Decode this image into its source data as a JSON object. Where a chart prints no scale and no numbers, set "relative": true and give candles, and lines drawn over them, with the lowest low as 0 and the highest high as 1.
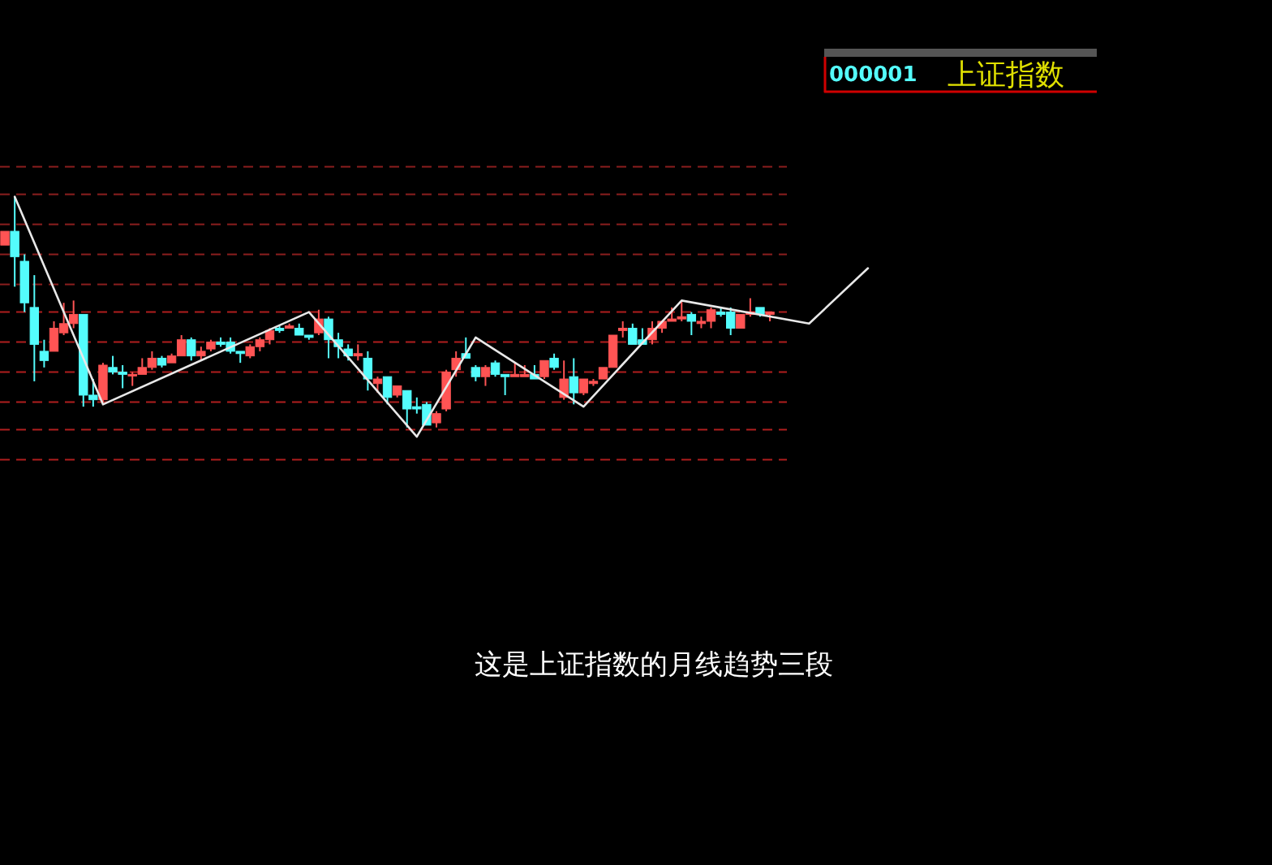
{
  "chart_data": {
    "type": "candlestick",
    "title": "000001",
    "subtitle": "上证指数",
    "annotations": [
      "这是上证指数的月线趋势三段"
    ],
    "relative": true,
    "categories": [
      null,
      null,
      null,
      null,
      null,
      null,
      null,
      null,
      null,
      null,
      null,
      null,
      null,
      null,
      null,
      null,
      null,
      null,
      null,
      null,
      null,
      null,
      null,
      null,
      null,
      null,
      null,
      null,
      null,
      null,
      null,
      null,
      null,
      null,
      null,
      null,
      null,
      null,
      null,
      null,
      null,
      null,
      null,
      null,
      null,
      null,
      null,
      null,
      null,
      null,
      null,
      null,
      null,
      null,
      null,
      null,
      null,
      null,
      null,
      null,
      null,
      null,
      null,
      null,
      null,
      null,
      null,
      null,
      null,
      null,
      null,
      null,
      null,
      null,
      null,
      null,
      null,
      null,
      null,
      null,
      null,
      null,
      null,
      null,
      null,
      null,
      null,
      null,
      null
    ],
    "ohlc": [
      [
        0.79,
        0.85,
        0.79,
        0.85
      ],
      [
        0.85,
        1.0,
        0.61,
        0.74
      ],
      [
        0.72,
        0.75,
        0.5,
        0.54
      ],
      [
        0.52,
        0.66,
        0.2,
        0.36
      ],
      [
        0.33,
        0.38,
        0.26,
        0.29
      ],
      [
        0.33,
        0.46,
        0.33,
        0.43
      ],
      [
        0.41,
        0.54,
        0.4,
        0.45
      ],
      [
        0.45,
        0.55,
        0.43,
        0.49
      ],
      [
        0.49,
        0.49,
        0.09,
        0.14
      ],
      [
        0.14,
        0.21,
        0.09,
        0.12
      ],
      [
        0.12,
        0.28,
        0.11,
        0.27
      ],
      [
        0.26,
        0.31,
        0.23,
        0.24
      ],
      [
        0.24,
        0.27,
        0.17,
        0.23
      ],
      [
        0.23,
        0.24,
        0.18,
        0.23
      ],
      [
        0.23,
        0.3,
        0.23,
        0.26
      ],
      [
        0.26,
        0.33,
        0.25,
        0.3
      ],
      [
        0.3,
        0.31,
        0.26,
        0.27
      ],
      [
        0.28,
        0.32,
        0.28,
        0.31
      ],
      [
        0.31,
        0.4,
        0.31,
        0.38
      ],
      [
        0.38,
        0.39,
        0.29,
        0.31
      ],
      [
        0.31,
        0.35,
        0.29,
        0.33
      ],
      [
        0.34,
        0.38,
        0.33,
        0.37
      ],
      [
        0.37,
        0.39,
        0.35,
        0.36
      ],
      [
        0.37,
        0.39,
        0.32,
        0.33
      ],
      [
        0.33,
        0.33,
        0.28,
        0.32
      ],
      [
        0.31,
        0.36,
        0.3,
        0.35
      ],
      [
        0.35,
        0.39,
        0.33,
        0.38
      ],
      [
        0.38,
        0.43,
        0.36,
        0.42
      ],
      [
        0.43,
        0.44,
        0.41,
        0.42
      ],
      [
        0.43,
        0.45,
        0.43,
        0.44
      ],
      [
        0.43,
        0.45,
        0.4,
        0.4
      ],
      [
        0.4,
        0.4,
        0.38,
        0.39
      ],
      [
        0.41,
        0.51,
        0.4,
        0.47
      ],
      [
        0.47,
        0.48,
        0.3,
        0.38
      ],
      [
        0.38,
        0.41,
        0.3,
        0.35
      ],
      [
        0.34,
        0.36,
        0.29,
        0.31
      ],
      [
        0.31,
        0.36,
        0.29,
        0.32
      ],
      [
        0.3,
        0.33,
        0.16,
        0.21
      ],
      [
        0.19,
        0.22,
        0.15,
        0.21
      ],
      [
        0.22,
        0.22,
        0.1,
        0.13
      ],
      [
        0.14,
        0.18,
        0.13,
        0.18
      ],
      [
        0.16,
        0.16,
        0,
        0.08
      ],
      [
        0.09,
        0.13,
        0.06,
        0.08
      ],
      [
        0.1,
        0.11,
        0.01,
        0.01
      ],
      [
        0.02,
        0.07,
        0,
        0.06
      ],
      [
        0.08,
        0.25,
        0.07,
        0.24
      ],
      [
        0.25,
        0.33,
        0.22,
        0.3
      ],
      [
        0.32,
        0.39,
        0.3,
        0.3
      ],
      [
        0.26,
        0.27,
        0.2,
        0.22
      ],
      [
        0.22,
        0.27,
        0.18,
        0.26
      ],
      [
        0.28,
        0.29,
        0.22,
        0.23
      ],
      [
        0.23,
        0.23,
        0.14,
        0.22
      ],
      [
        0.22,
        0.28,
        0.22,
        0.23
      ],
      [
        0.22,
        0.27,
        0.22,
        0.23
      ],
      [
        0.23,
        0.27,
        0.21,
        0.21
      ],
      [
        0.22,
        0.29,
        0.21,
        0.29
      ],
      [
        0.3,
        0.32,
        0.25,
        0.26
      ],
      [
        0.13,
        0.29,
        0.12,
        0.21
      ],
      [
        0.22,
        0.3,
        0.1,
        0.15
      ],
      [
        0.15,
        0.21,
        0.14,
        0.21
      ],
      [
        0.19,
        0.21,
        0.18,
        0.2
      ],
      [
        0.21,
        0.26,
        0.21,
        0.26
      ],
      [
        0.26,
        0.4,
        0.26,
        0.4
      ],
      [
        0.42,
        0.46,
        0.39,
        0.43
      ],
      [
        0.43,
        0.45,
        0.36,
        0.36
      ],
      [
        0.38,
        0.43,
        0.36,
        0.36
      ],
      [
        0.38,
        0.46,
        0.36,
        0.43
      ],
      [
        0.43,
        0.46,
        0.41,
        0.46
      ],
      [
        0.46,
        0.52,
        0.46,
        0.47
      ],
      [
        0.47,
        0.55,
        0.46,
        0.48
      ],
      [
        0.49,
        0.5,
        0.4,
        0.46
      ],
      [
        0.45,
        0.48,
        0.43,
        0.46
      ],
      [
        0.46,
        0.52,
        0.43,
        0.51
      ],
      [
        0.5,
        0.52,
        0.48,
        0.49
      ],
      [
        0.5,
        0.52,
        0.4,
        0.43
      ],
      [
        0.43,
        0.49,
        0.43,
        0.49
      ],
      [
        0.49,
        0.56,
        0.48,
        0.5
      ],
      [
        0.52,
        0.52,
        0.48,
        0.49
      ],
      [
        0.49,
        0.5,
        0.46,
        0.5
      ],
      null,
      null,
      null,
      null,
      null,
      null,
      null,
      null,
      null,
      null
    ],
    "colors": [
      "#ff5454",
      "#54fcfc",
      "#54fcfc",
      "#54fcfc",
      "#54fcfc",
      "#ff5454",
      "#ff5454",
      "#ff5454",
      "#54fcfc",
      "#54fcfc",
      "#ff5454",
      "#54fcfc",
      "#54fcfc",
      "#ff5454",
      "#ff5454",
      "#ff5454",
      "#54fcfc",
      "#ff5454",
      "#ff5454",
      "#54fcfc",
      "#ff5454",
      "#ff5454",
      "#54fcfc",
      "#54fcfc",
      "#54fcfc",
      "#ff5454",
      "#ff5454",
      "#ff5454",
      "#54fcfc",
      "#ff5454",
      "#54fcfc",
      "#54fcfc",
      "#ff5454",
      "#54fcfc",
      "#54fcfc",
      "#54fcfc",
      "#ff5454",
      "#54fcfc",
      "#ff5454",
      "#54fcfc",
      "#ff5454",
      "#54fcfc",
      "#54fcfc",
      "#54fcfc",
      "#ff5454",
      "#ff5454",
      "#ff5454",
      "#54fcfc",
      "#54fcfc",
      "#ff5454",
      "#54fcfc",
      "#54fcfc",
      "#ff5454",
      "#ff5454",
      "#54fcfc",
      "#ff5454",
      "#54fcfc",
      "#ff5454",
      "#54fcfc",
      "#ff5454",
      "#ff5454",
      "#ff5454",
      "#ff5454",
      "#ff5454",
      "#54fcfc",
      "#54fcfc",
      "#ff5454",
      "#ff5454",
      "#ff5454",
      "#ff5454",
      "#54fcfc",
      "#ff5454",
      "#ff5454",
      "#54fcfc",
      "#54fcfc",
      "#ff5454",
      "#ff5454",
      "#54fcfc",
      "#ff5454",
      null,
      null,
      null,
      null,
      null,
      null,
      null,
      null,
      null,
      null
    ],
    "series": [
      {
        "type": "line",
        "color": "#e8e8e8",
        "values": [
          null,
          1.0,
          null,
          null,
          null,
          null,
          null,
          null,
          null,
          null,
          0.1,
          null,
          null,
          null,
          null,
          null,
          null,
          null,
          null,
          null,
          null,
          null,
          null,
          null,
          null,
          null,
          null,
          null,
          null,
          null,
          null,
          0.5,
          null,
          null,
          null,
          null,
          null,
          null,
          null,
          null,
          null,
          null,
          -0.04,
          null,
          null,
          null,
          null,
          null,
          0.39,
          null,
          null,
          null,
          null,
          null,
          null,
          null,
          null,
          null,
          null,
          0.09,
          null,
          null,
          null,
          null,
          null,
          null,
          null,
          null,
          null,
          0.55,
          null,
          null,
          null,
          null,
          null,
          null,
          null,
          null,
          null,
          null,
          null,
          null,
          0.45,
          null,
          null,
          null,
          null,
          null,
          0.69
        ]
      }
    ],
    "ref_lines": [
      {
        "axis": "y",
        "value": 1.13,
        "color": "#8b1e1e",
        "line_style": "dashed"
      },
      {
        "axis": "y",
        "value": 1.01,
        "color": "#8b1e1e",
        "line_style": "dashed"
      },
      {
        "axis": "y",
        "value": 0.88,
        "color": "#8b1e1e",
        "line_style": "dashed"
      },
      {
        "axis": "y",
        "value": 0.75,
        "color": "#8b1e1e",
        "line_style": "dashed"
      },
      {
        "axis": "y",
        "value": 0.62,
        "color": "#8b1e1e",
        "line_style": "dashed"
      },
      {
        "axis": "y",
        "value": 0.5,
        "color": "#b01e1e",
        "line_style": "dashed"
      },
      {
        "axis": "y",
        "value": 0.37,
        "color": "#b01e1e",
        "line_style": "dashed"
      },
      {
        "axis": "y",
        "value": 0.24,
        "color": "#b01e1e",
        "line_style": "dashed"
      },
      {
        "axis": "y",
        "value": 0.11,
        "color": "#b01e1e",
        "line_style": "dashed"
      },
      {
        "axis": "y",
        "value": -0.01,
        "color": "#b01e1e",
        "line_style": "dashed"
      },
      {
        "axis": "y",
        "value": -0.14,
        "color": "#b01e1e",
        "line_style": "dashed"
      }
    ]
  }
}
